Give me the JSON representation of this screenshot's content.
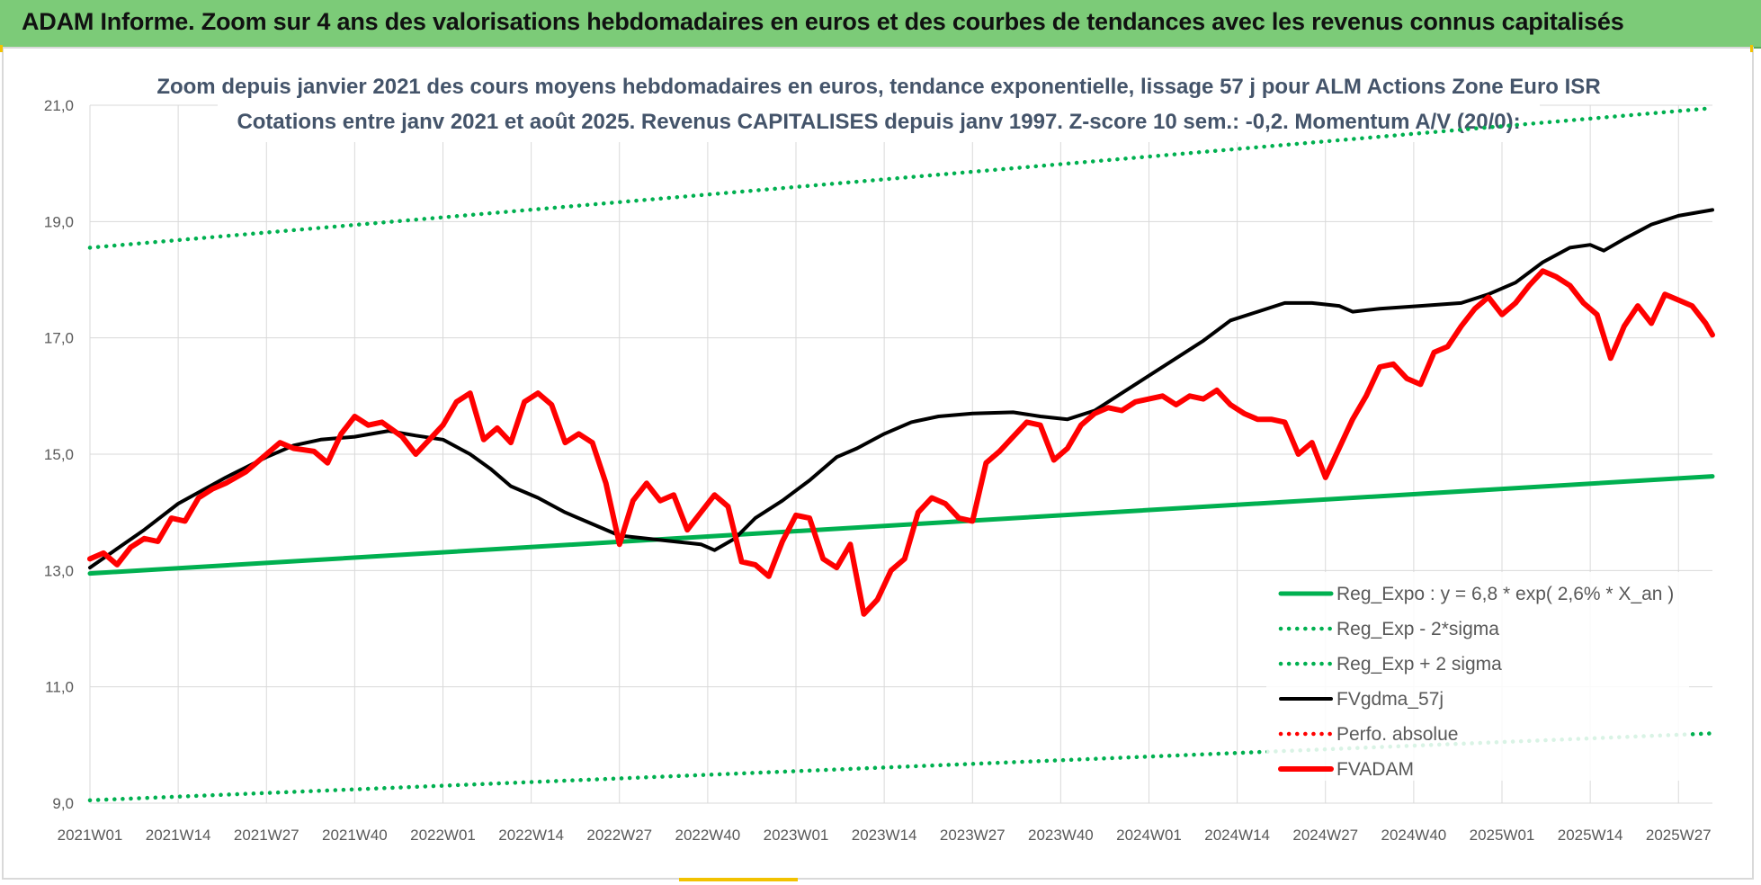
{
  "header": {
    "title": "ADAM Informe. Zoom sur 4 ans des valorisations hebdomadaires en euros et des courbes de tendances avec les revenus connus capitalisés"
  },
  "colors": {
    "banner": "#7ccb78",
    "trend": "#00b050",
    "fvadam": "#ff0000",
    "fvgdma": "#000000",
    "grid": "#d9d9d9",
    "subtitle": "#44546a"
  },
  "chart_data": {
    "type": "line",
    "title_lines": [
      "Zoom depuis janvier 2021 des cours moyens hebdomadaires en euros, tendance exponentielle, lissage 57 j pour ALM Actions Zone Euro ISR",
      "Cotations entre janv 2021 et août 2025. Revenus CAPITALISES depuis janv 1997. Z-score 10 sem.: -0,2. Momentum A/V (20/0):"
    ],
    "ylim": [
      9,
      21
    ],
    "y_ticks": [
      "9,0",
      "11,0",
      "13,0",
      "15,0",
      "17,0",
      "19,0",
      "21,0"
    ],
    "y_tick_values": [
      9,
      11,
      13,
      15,
      17,
      19,
      21
    ],
    "x_tick_labels": [
      "2021W01",
      "2021W14",
      "2021W27",
      "2021W40",
      "2022W01",
      "2022W14",
      "2022W27",
      "2022W40",
      "2023W01",
      "2023W14",
      "2023W27",
      "2023W40",
      "2024W01",
      "2024W14",
      "2024W27",
      "2024W40",
      "2025W01",
      "2025W14",
      "2025W27"
    ],
    "x_tick_index": [
      0,
      13,
      26,
      39,
      52,
      65,
      78,
      91,
      104,
      117,
      130,
      143,
      156,
      169,
      182,
      195,
      208,
      221,
      234
    ],
    "n_weeks": 240,
    "grid": true,
    "legend_position": "bottom-right",
    "series": [
      {
        "name": "Reg_Expo : y = 6,8 * exp( 2,6% *  X_an )",
        "style": "solid-thick",
        "color": "#00b050",
        "points": [
          [
            0,
            12.95
          ],
          [
            239,
            14.62
          ]
        ]
      },
      {
        "name": "Reg_Exp - 2*sigma",
        "style": "dotted",
        "color": "#00b050",
        "points": [
          [
            0,
            9.05
          ],
          [
            239,
            10.2
          ]
        ]
      },
      {
        "name": "Reg_Exp + 2 sigma",
        "style": "dotted",
        "color": "#00b050",
        "points": [
          [
            0,
            18.55
          ],
          [
            239,
            20.95
          ]
        ]
      },
      {
        "name": "FVgdma_57j",
        "style": "solid",
        "color": "#000000",
        "points": [
          [
            0,
            13.05
          ],
          [
            8,
            13.7
          ],
          [
            13,
            14.15
          ],
          [
            20,
            14.6
          ],
          [
            26,
            14.95
          ],
          [
            30,
            15.15
          ],
          [
            34,
            15.25
          ],
          [
            39,
            15.3
          ],
          [
            44,
            15.4
          ],
          [
            48,
            15.32
          ],
          [
            52,
            15.25
          ],
          [
            56,
            15.0
          ],
          [
            59,
            14.75
          ],
          [
            62,
            14.45
          ],
          [
            66,
            14.25
          ],
          [
            70,
            14.0
          ],
          [
            74,
            13.8
          ],
          [
            78,
            13.6
          ],
          [
            82,
            13.55
          ],
          [
            86,
            13.5
          ],
          [
            90,
            13.45
          ],
          [
            92,
            13.35
          ],
          [
            95,
            13.55
          ],
          [
            98,
            13.9
          ],
          [
            102,
            14.2
          ],
          [
            106,
            14.55
          ],
          [
            110,
            14.95
          ],
          [
            113,
            15.1
          ],
          [
            117,
            15.35
          ],
          [
            121,
            15.55
          ],
          [
            125,
            15.65
          ],
          [
            130,
            15.7
          ],
          [
            136,
            15.72
          ],
          [
            140,
            15.65
          ],
          [
            144,
            15.6
          ],
          [
            148,
            15.75
          ],
          [
            152,
            16.05
          ],
          [
            156,
            16.35
          ],
          [
            160,
            16.65
          ],
          [
            164,
            16.95
          ],
          [
            168,
            17.3
          ],
          [
            172,
            17.45
          ],
          [
            176,
            17.6
          ],
          [
            180,
            17.6
          ],
          [
            184,
            17.55
          ],
          [
            186,
            17.45
          ],
          [
            190,
            17.5
          ],
          [
            196,
            17.55
          ],
          [
            202,
            17.6
          ],
          [
            206,
            17.75
          ],
          [
            210,
            17.95
          ],
          [
            214,
            18.3
          ],
          [
            218,
            18.55
          ],
          [
            221,
            18.6
          ],
          [
            223,
            18.5
          ],
          [
            226,
            18.7
          ],
          [
            230,
            18.95
          ],
          [
            234,
            19.1
          ],
          [
            239,
            19.2
          ]
        ]
      },
      {
        "name": "Perfo. absolue",
        "style": "dotted",
        "color": "#ff0000",
        "points": []
      },
      {
        "name": "FVADAM",
        "style": "solid-thick",
        "color": "#ff0000",
        "points": [
          [
            0,
            13.2
          ],
          [
            2,
            13.3
          ],
          [
            4,
            13.1
          ],
          [
            6,
            13.4
          ],
          [
            8,
            13.55
          ],
          [
            10,
            13.5
          ],
          [
            12,
            13.9
          ],
          [
            14,
            13.85
          ],
          [
            16,
            14.25
          ],
          [
            18,
            14.4
          ],
          [
            20,
            14.5
          ],
          [
            23,
            14.7
          ],
          [
            26,
            15.0
          ],
          [
            28,
            15.2
          ],
          [
            30,
            15.1
          ],
          [
            33,
            15.05
          ],
          [
            35,
            14.85
          ],
          [
            37,
            15.35
          ],
          [
            39,
            15.65
          ],
          [
            41,
            15.5
          ],
          [
            43,
            15.55
          ],
          [
            46,
            15.3
          ],
          [
            48,
            15.0
          ],
          [
            50,
            15.25
          ],
          [
            52,
            15.5
          ],
          [
            54,
            15.9
          ],
          [
            56,
            16.05
          ],
          [
            58,
            15.25
          ],
          [
            60,
            15.45
          ],
          [
            62,
            15.2
          ],
          [
            64,
            15.9
          ],
          [
            66,
            16.05
          ],
          [
            68,
            15.85
          ],
          [
            70,
            15.2
          ],
          [
            72,
            15.35
          ],
          [
            74,
            15.2
          ],
          [
            76,
            14.5
          ],
          [
            78,
            13.45
          ],
          [
            80,
            14.2
          ],
          [
            82,
            14.5
          ],
          [
            84,
            14.2
          ],
          [
            86,
            14.3
          ],
          [
            88,
            13.7
          ],
          [
            90,
            14.0
          ],
          [
            92,
            14.3
          ],
          [
            94,
            14.1
          ],
          [
            96,
            13.15
          ],
          [
            98,
            13.1
          ],
          [
            100,
            12.9
          ],
          [
            102,
            13.5
          ],
          [
            104,
            13.95
          ],
          [
            106,
            13.9
          ],
          [
            108,
            13.2
          ],
          [
            110,
            13.05
          ],
          [
            112,
            13.45
          ],
          [
            114,
            12.25
          ],
          [
            116,
            12.5
          ],
          [
            118,
            13.0
          ],
          [
            120,
            13.2
          ],
          [
            122,
            14.0
          ],
          [
            124,
            14.25
          ],
          [
            126,
            14.15
          ],
          [
            128,
            13.9
          ],
          [
            130,
            13.85
          ],
          [
            132,
            14.85
          ],
          [
            134,
            15.05
          ],
          [
            136,
            15.3
          ],
          [
            138,
            15.55
          ],
          [
            140,
            15.5
          ],
          [
            142,
            14.9
          ],
          [
            144,
            15.1
          ],
          [
            146,
            15.5
          ],
          [
            148,
            15.7
          ],
          [
            150,
            15.8
          ],
          [
            152,
            15.75
          ],
          [
            154,
            15.9
          ],
          [
            156,
            15.95
          ],
          [
            158,
            16.0
          ],
          [
            160,
            15.85
          ],
          [
            162,
            16.0
          ],
          [
            164,
            15.95
          ],
          [
            166,
            16.1
          ],
          [
            168,
            15.85
          ],
          [
            170,
            15.7
          ],
          [
            172,
            15.6
          ],
          [
            174,
            15.6
          ],
          [
            176,
            15.55
          ],
          [
            178,
            15.0
          ],
          [
            180,
            15.2
          ],
          [
            182,
            14.6
          ],
          [
            184,
            15.1
          ],
          [
            186,
            15.6
          ],
          [
            188,
            16.0
          ],
          [
            190,
            16.5
          ],
          [
            192,
            16.55
          ],
          [
            194,
            16.3
          ],
          [
            196,
            16.2
          ],
          [
            198,
            16.75
          ],
          [
            200,
            16.85
          ],
          [
            202,
            17.2
          ],
          [
            204,
            17.5
          ],
          [
            206,
            17.7
          ],
          [
            208,
            17.4
          ],
          [
            210,
            17.6
          ],
          [
            212,
            17.9
          ],
          [
            214,
            18.15
          ],
          [
            216,
            18.05
          ],
          [
            218,
            17.9
          ],
          [
            220,
            17.6
          ],
          [
            222,
            17.4
          ],
          [
            224,
            16.65
          ],
          [
            226,
            17.2
          ],
          [
            228,
            17.55
          ],
          [
            230,
            17.25
          ],
          [
            232,
            17.75
          ],
          [
            234,
            17.65
          ],
          [
            236,
            17.55
          ],
          [
            238,
            17.25
          ],
          [
            239,
            17.05
          ]
        ]
      }
    ]
  }
}
